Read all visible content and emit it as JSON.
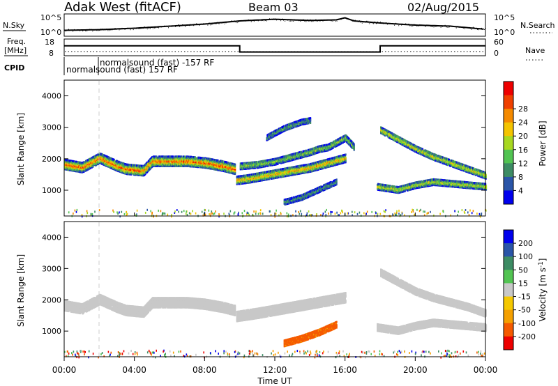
{
  "header": {
    "station": "Adak West (fitACF)",
    "beam": "Beam 03",
    "date": "02/Aug/2015"
  },
  "left_labels": {
    "nsky": "N.Sky",
    "freq_line1": "Freq.",
    "freq_line2": "[MHz]",
    "cpid": "CPID"
  },
  "right_labels": {
    "nsearch": "N.Search",
    "nave": "Nave"
  },
  "cpid_annotations": [
    "normalsound (fast) 157 RF",
    "normalsound (fast) -157 RF"
  ],
  "colors": {
    "power": [
      "#0000ee",
      "#2a55a8",
      "#3d8c64",
      "#52c452",
      "#a8d820",
      "#f4c400",
      "#f58a00",
      "#f04000",
      "#ee0000"
    ],
    "velocity": [
      "#ee0000",
      "#f55a00",
      "#f5a000",
      "#f5c800",
      "#c8c8c8",
      "#52c452",
      "#3d8c64",
      "#2a55a8",
      "#0000ee"
    ],
    "ground_scatter": "#c8c8c8"
  },
  "chart_data": [
    {
      "type": "line",
      "title": "N.Sky / N.Search",
      "x_range_hours": [
        0,
        24
      ],
      "left_ticks": [
        "10^5",
        "10^0"
      ],
      "right_ticks": [
        "10^5",
        "10^0"
      ],
      "series": [
        {
          "name": "N.Sky",
          "x": [
            0,
            2,
            4,
            6,
            8,
            10,
            12,
            14,
            15.5,
            16,
            16.5,
            18,
            20,
            22,
            24
          ],
          "values": [
            0.25,
            0.28,
            0.35,
            0.45,
            0.55,
            0.7,
            0.78,
            0.72,
            0.75,
            0.85,
            0.7,
            0.6,
            0.5,
            0.45,
            0.3
          ]
        }
      ]
    },
    {
      "type": "line",
      "title": "Freq / Nave",
      "x_range_hours": [
        0,
        24
      ],
      "left_ticks": [
        "18",
        "8"
      ],
      "right_ticks": [
        "60",
        "0"
      ],
      "series": [
        {
          "name": "Freq.",
          "x": [
            0,
            10,
            10,
            18,
            18,
            24
          ],
          "values": [
            14,
            14,
            10,
            10,
            14,
            14
          ]
        },
        {
          "name": "Nave",
          "x": [
            0,
            24
          ],
          "values": [
            10,
            10
          ]
        }
      ]
    },
    {
      "type": "heatmap",
      "title": "Power",
      "ylabel": "Slant Range [km]",
      "xlabel": "",
      "y_range_km": [
        180,
        4500
      ],
      "y_ticks": [
        "1000",
        "2000",
        "3000",
        "4000"
      ],
      "colorbar_label": "Power [dB]",
      "colorbar_ticks": [
        "4",
        "8",
        "12",
        "16",
        "20",
        "24",
        "28"
      ],
      "bands": [
        {
          "x": [
            0,
            1,
            2,
            3,
            3.5,
            4.5,
            5,
            6,
            7,
            8,
            9,
            9.7
          ],
          "y": [
            1850,
            1750,
            2050,
            1800,
            1700,
            1650,
            1950,
            1950,
            1950,
            1900,
            1800,
            1700
          ],
          "width": 300,
          "level": 0.85
        },
        {
          "x": [
            9.8,
            10.5,
            11,
            12,
            13,
            14,
            15,
            16
          ],
          "y": [
            1350,
            1400,
            1450,
            1550,
            1650,
            1750,
            1900,
            2050
          ],
          "width": 250,
          "level": 0.7
        },
        {
          "x": [
            10,
            11,
            12,
            13,
            14,
            14.5,
            15,
            15.5,
            16,
            16.5
          ],
          "y": [
            1800,
            1850,
            1950,
            2100,
            2250,
            2350,
            2400,
            2550,
            2700,
            2400
          ],
          "width": 200,
          "level": 0.45
        },
        {
          "x": [
            11.5,
            12.5,
            13.5,
            14
          ],
          "y": [
            2700,
            3000,
            3200,
            3250
          ],
          "width": 150,
          "level": 0.35
        },
        {
          "x": [
            12.5,
            13.5,
            14.5,
            15.5
          ],
          "y": [
            650,
            800,
            1050,
            1300
          ],
          "width": 150,
          "level": 0.3
        },
        {
          "x": [
            18,
            19,
            20,
            21,
            22,
            23,
            24
          ],
          "y": [
            2950,
            2650,
            2350,
            2100,
            1900,
            1700,
            1500
          ],
          "width": 200,
          "level": 0.6
        },
        {
          "x": [
            17.8,
            19,
            20,
            21,
            22,
            23,
            24
          ],
          "y": [
            1150,
            1050,
            1200,
            1300,
            1250,
            1200,
            1150
          ],
          "width": 200,
          "level": 0.55
        }
      ]
    },
    {
      "type": "heatmap",
      "title": "Velocity",
      "ylabel": "Slant Range [km]",
      "xlabel": "Time UT",
      "x_ticks": [
        "00:00",
        "04:00",
        "08:00",
        "12:00",
        "16:00",
        "20:00",
        "00:00"
      ],
      "y_range_km": [
        180,
        4500
      ],
      "y_ticks": [
        "1000",
        "2000",
        "3000",
        "4000"
      ],
      "colorbar_label": "Velocity [m s-1]",
      "colorbar_ticks": [
        "200",
        "100",
        "50",
        "15",
        "-15",
        "-50",
        "-100",
        "-200"
      ],
      "bands": [
        {
          "x": [
            0,
            1,
            2,
            3,
            3.5,
            4.5,
            5,
            6,
            7,
            8,
            9,
            9.7
          ],
          "y": [
            1850,
            1750,
            2050,
            1800,
            1700,
            1650,
            1950,
            1950,
            1950,
            1900,
            1800,
            1700
          ],
          "width": 320,
          "vel": 0
        },
        {
          "x": [
            9.8,
            11,
            12,
            13,
            14,
            15,
            16
          ],
          "y": [
            1500,
            1600,
            1700,
            1800,
            1900,
            2000,
            2100
          ],
          "width": 300,
          "vel": 0
        },
        {
          "x": [
            12.5,
            13.5,
            14.5,
            15.5
          ],
          "y": [
            650,
            800,
            1000,
            1250
          ],
          "width": 200,
          "vel": -60
        },
        {
          "x": [
            18,
            19,
            20,
            21,
            22,
            23,
            24
          ],
          "y": [
            2900,
            2600,
            2300,
            2100,
            1950,
            1800,
            1600
          ],
          "width": 220,
          "vel": 0
        },
        {
          "x": [
            17.8,
            19,
            20,
            21,
            22,
            23,
            24
          ],
          "y": [
            1150,
            1050,
            1200,
            1300,
            1250,
            1200,
            1150
          ],
          "width": 220,
          "vel": 0
        }
      ]
    }
  ]
}
